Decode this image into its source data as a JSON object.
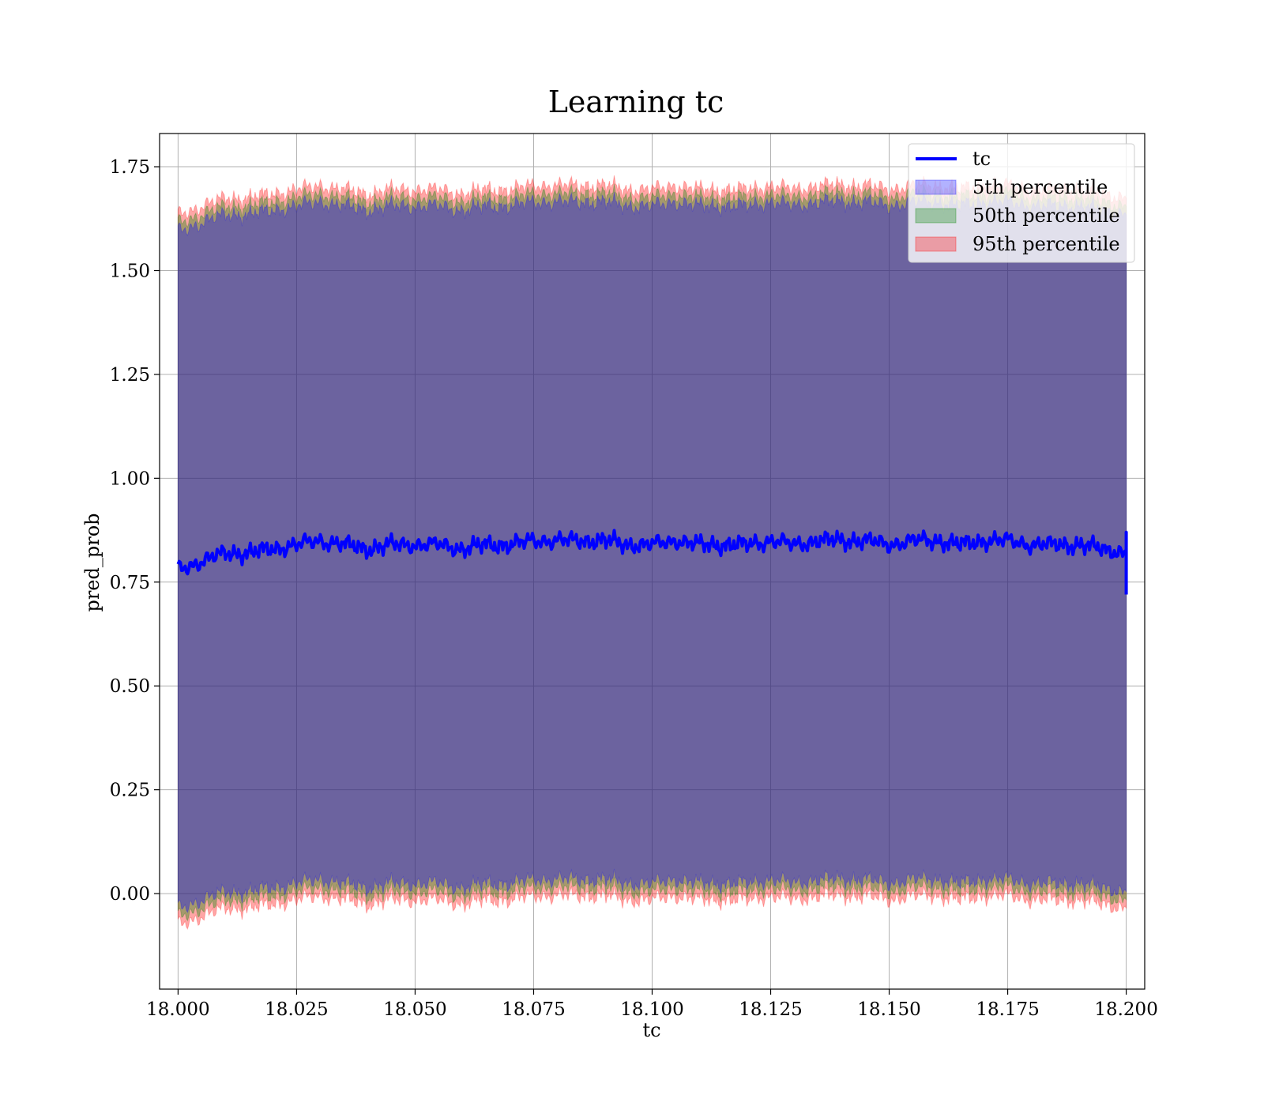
{
  "chart_data": {
    "type": "line",
    "title": "Learning tc",
    "xlabel": "tc",
    "ylabel": "pred_prob",
    "xlim": [
      17.9961,
      18.2039
    ],
    "ylim": [
      -0.23,
      1.83
    ],
    "xticks": [
      18.0,
      18.025,
      18.05,
      18.075,
      18.1,
      18.125,
      18.15,
      18.175,
      18.2
    ],
    "xtick_labels": [
      "18.000",
      "18.025",
      "18.050",
      "18.075",
      "18.100",
      "18.125",
      "18.150",
      "18.175",
      "18.200"
    ],
    "yticks": [
      0.0,
      0.25,
      0.5,
      0.75,
      1.0,
      1.25,
      1.5,
      1.75
    ],
    "ytick_labels": [
      "0.00",
      "0.25",
      "0.50",
      "0.75",
      "1.00",
      "1.25",
      "1.50",
      "1.75"
    ],
    "grid": true,
    "legend_position": "top-right",
    "legend": [
      {
        "label": "tc",
        "kind": "line",
        "color": "#0000ff"
      },
      {
        "label": "5th percentile",
        "kind": "band",
        "color": "#0000ff"
      },
      {
        "label": "50th percentile",
        "kind": "band",
        "color": "#008000"
      },
      {
        "label": "95th percentile",
        "kind": "band",
        "color": "#ff0000"
      }
    ],
    "series_line": {
      "name": "tc",
      "color": "#0000ff",
      "x": [
        18.0,
        18.005,
        18.01,
        18.015,
        18.02,
        18.025,
        18.03,
        18.035,
        18.04,
        18.045,
        18.05,
        18.055,
        18.06,
        18.065,
        18.07,
        18.075,
        18.08,
        18.085,
        18.09,
        18.095,
        18.1,
        18.105,
        18.11,
        18.115,
        18.12,
        18.125,
        18.13,
        18.135,
        18.14,
        18.145,
        18.15,
        18.155,
        18.16,
        18.165,
        18.17,
        18.175,
        18.18,
        18.185,
        18.19,
        18.195,
        18.2
      ],
      "y": [
        0.78,
        0.8,
        0.82,
        0.82,
        0.83,
        0.84,
        0.85,
        0.84,
        0.83,
        0.84,
        0.84,
        0.84,
        0.83,
        0.84,
        0.84,
        0.85,
        0.85,
        0.85,
        0.85,
        0.84,
        0.84,
        0.85,
        0.84,
        0.84,
        0.84,
        0.85,
        0.84,
        0.85,
        0.85,
        0.85,
        0.84,
        0.85,
        0.85,
        0.84,
        0.85,
        0.85,
        0.84,
        0.84,
        0.84,
        0.83,
        0.82
      ]
    },
    "bands": [
      {
        "name": "95th percentile",
        "color": "#ff0000",
        "opacity": 0.35,
        "spread": 0.855
      },
      {
        "name": "50th percentile",
        "color": "#008000",
        "opacity": 0.35,
        "spread": 0.835
      },
      {
        "name": "5th percentile",
        "color": "#0000ff",
        "opacity": 0.35,
        "spread": 0.815
      }
    ]
  }
}
